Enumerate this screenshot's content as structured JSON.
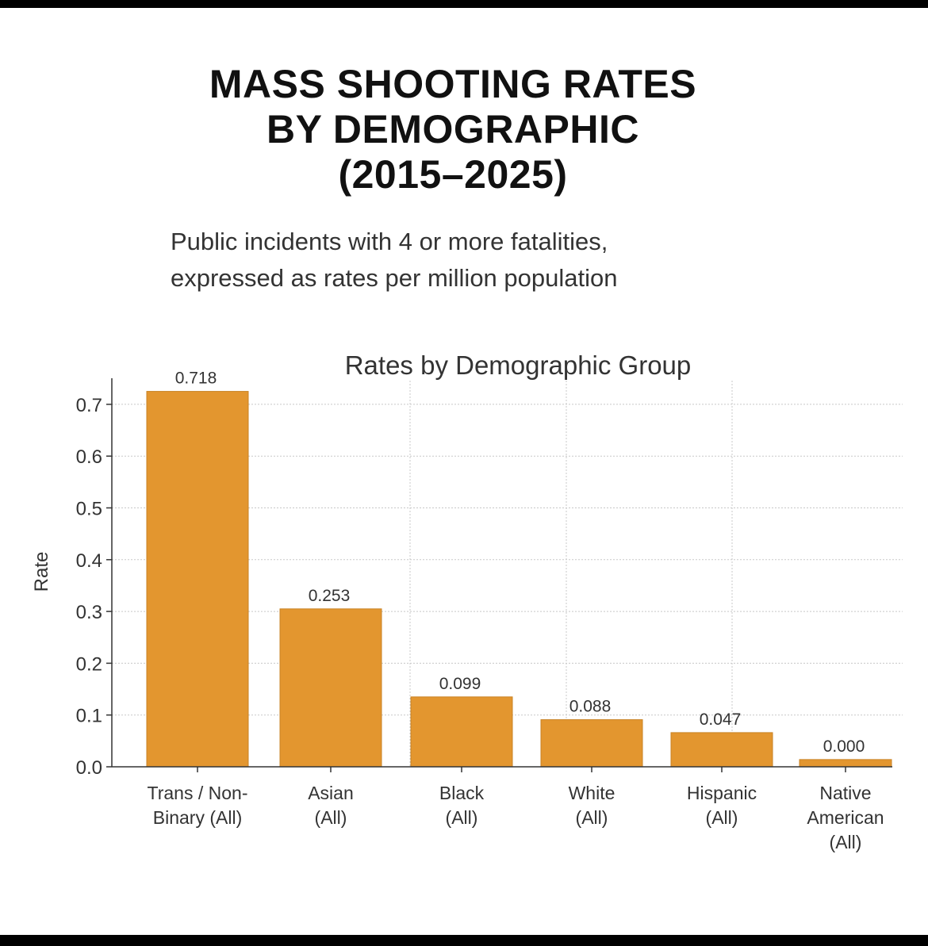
{
  "header": {
    "title_lines": [
      "MASS SHOOTING RATES",
      "BY DEMOGRAPHIC",
      "(2015–2025)"
    ],
    "subtitle_lines": [
      "Public incidents with 4 or more fatalities,",
      "expressed as rates per million population"
    ]
  },
  "colors": {
    "bar": "#E3962F",
    "bar_edge": "#C98325",
    "text": "#333333",
    "grid": "#c8c8c8"
  },
  "chart_data": {
    "type": "bar",
    "title": "Rates by Demographic Group",
    "xlabel": "",
    "ylabel": "Rate",
    "categories": [
      [
        "Trans / Non-",
        "Binary  (All)"
      ],
      [
        "Asian",
        "(All)"
      ],
      [
        "Black",
        "(All)"
      ],
      [
        "White",
        "(All)"
      ],
      [
        "Hispanic",
        "(All)"
      ],
      [
        "Native",
        "American",
        "(All)"
      ]
    ],
    "values": [
      0.718,
      0.253,
      0.099,
      0.088,
      0.047,
      0.0
    ],
    "bar_heights": [
      0.725,
      0.305,
      0.135,
      0.091,
      0.066,
      0.014
    ],
    "data_labels": [
      "0.718",
      "0.253",
      "0.099",
      "0.088",
      "0.047",
      "0.000"
    ],
    "ylim": [
      0,
      0.74
    ],
    "yticks": [
      0.0,
      0.1,
      0.2,
      0.3,
      0.4,
      0.5,
      0.6,
      0.7
    ],
    "ytick_labels": [
      "0.0",
      "0.1",
      "0.2",
      "0.3",
      "0.4",
      "0.5",
      "0.6",
      "0.7"
    ],
    "grid": true,
    "legend": "none"
  }
}
